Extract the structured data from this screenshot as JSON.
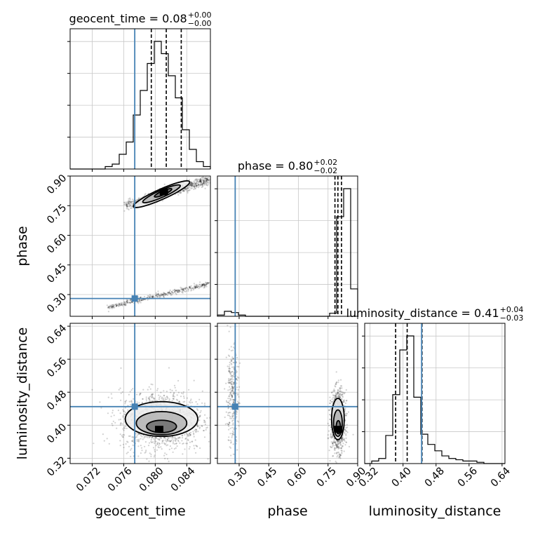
{
  "chart_data": {
    "type": "corner",
    "parameters": [
      "geocent_time",
      "phase",
      "luminosity_distance"
    ],
    "axis_labels": [
      "geocent_time",
      "phase",
      "luminosity_distance"
    ],
    "ranges": [
      [
        0.0692,
        0.087
      ],
      [
        0.19,
        0.9
      ],
      [
        0.307,
        0.647
      ]
    ],
    "ticks": [
      [
        "0.072",
        "0.076",
        "0.080",
        "0.084"
      ],
      [
        "0.30",
        "0.45",
        "0.60",
        "0.75",
        "0.90"
      ],
      [
        "0.32",
        "0.40",
        "0.48",
        "0.56",
        "0.64"
      ]
    ],
    "truths": [
      0.0774,
      0.28,
      0.445
    ],
    "truth_color": "#4682b4",
    "titles": [
      {
        "param": "geocent_time",
        "median": "0.08",
        "plus": "+0.00",
        "minus": "−0.00"
      },
      {
        "param": "phase",
        "median": "0.80",
        "plus": "+0.02",
        "minus": "−0.02"
      },
      {
        "param": "luminosity_distance",
        "median": "0.41",
        "plus": "+0.04",
        "minus": "−0.03"
      }
    ],
    "quantiles": [
      [
        0.0795,
        0.0814,
        0.0833
      ],
      [
        0.785,
        0.8,
        0.818
      ],
      [
        0.382,
        0.41,
        0.446
      ]
    ],
    "histograms": [
      {
        "bin_start": 0.0692,
        "bin_width": 0.00089,
        "counts": [
          0,
          0,
          0,
          0,
          0,
          1,
          2,
          6,
          11,
          22,
          32,
          43,
          52,
          47,
          38,
          29,
          16,
          8,
          3,
          1
        ]
      },
      {
        "bin_start": 0.19,
        "bin_width": 0.0355,
        "counts": [
          2,
          8,
          6,
          2,
          0,
          0,
          0,
          0,
          0,
          0,
          0,
          0,
          0,
          0,
          0,
          0,
          5,
          160,
          205,
          44
        ]
      },
      {
        "bin_start": 0.307,
        "bin_width": 0.017,
        "counts": [
          0,
          2,
          4,
          22,
          54,
          89,
          100,
          52,
          23,
          15,
          10,
          6,
          4,
          3,
          2,
          2,
          1,
          0,
          0,
          0
        ]
      }
    ],
    "pairs": [
      {
        "row": 1,
        "col": 0,
        "clusters": [
          {
            "kind": "line",
            "x0": 0.0762,
            "y0": 0.752,
            "x1": 0.0868,
            "y1": 0.88,
            "n": 700,
            "spread": 0.012
          },
          {
            "kind": "line",
            "x0": 0.074,
            "y0": 0.235,
            "x1": 0.0868,
            "y1": 0.355,
            "n": 420,
            "spread": 0.006
          }
        ],
        "contours": [
          {
            "cx": 0.0808,
            "cy": 0.808,
            "rx": 0.0039,
            "ry": 0.026,
            "angle": -24
          },
          {
            "cx": 0.0808,
            "cy": 0.81,
            "rx": 0.0026,
            "ry": 0.018,
            "angle": -24
          },
          {
            "cx": 0.081,
            "cy": 0.815,
            "rx": 0.0012,
            "ry": 0.01,
            "angle": -24
          }
        ],
        "core": {
          "cx": 0.0811,
          "cy": 0.82
        }
      },
      {
        "row": 2,
        "col": 0,
        "clusters": [
          {
            "kind": "blob",
            "cx": 0.0808,
            "cy": 0.41,
            "sx": 0.0026,
            "sy": 0.036,
            "n": 1400
          }
        ],
        "contours": [
          {
            "cx": 0.0808,
            "cy": 0.415,
            "rx": 0.0046,
            "ry": 0.042,
            "angle": 0
          },
          {
            "cx": 0.0808,
            "cy": 0.405,
            "rx": 0.0032,
            "ry": 0.028,
            "angle": 0
          },
          {
            "cx": 0.0808,
            "cy": 0.397,
            "rx": 0.0019,
            "ry": 0.015,
            "angle": 0
          }
        ],
        "core": {
          "cx": 0.0805,
          "cy": 0.39
        }
      },
      {
        "row": 2,
        "col": 1,
        "clusters": [
          {
            "kind": "blob",
            "cx": 0.8,
            "cy": 0.41,
            "sx": 0.018,
            "sy": 0.036,
            "n": 1100
          },
          {
            "kind": "blob",
            "cx": 0.265,
            "cy": 0.47,
            "sx": 0.016,
            "sy": 0.06,
            "n": 300
          }
        ],
        "contours": [
          {
            "cx": 0.8,
            "cy": 0.415,
            "rx": 0.032,
            "ry": 0.05,
            "angle": 0
          },
          {
            "cx": 0.8,
            "cy": 0.405,
            "rx": 0.022,
            "ry": 0.032,
            "angle": 0
          },
          {
            "cx": 0.802,
            "cy": 0.395,
            "rx": 0.011,
            "ry": 0.016,
            "angle": 0
          }
        ],
        "core": {
          "cx": 0.802,
          "cy": 0.39
        }
      }
    ]
  }
}
